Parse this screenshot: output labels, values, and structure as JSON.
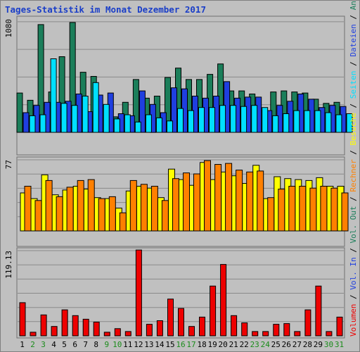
{
  "chart_data": [
    {
      "type": "bar",
      "title": "Tages-Statistik im Monat Dezember 2017",
      "categories": [
        "1",
        "2",
        "3",
        "4",
        "5",
        "6",
        "7",
        "8",
        "9",
        "10",
        "11",
        "12",
        "13",
        "14",
        "15",
        "16",
        "17",
        "18",
        "19",
        "20",
        "21",
        "22",
        "23",
        "24",
        "25",
        "26",
        "27",
        "28",
        "29",
        "30",
        "31"
      ],
      "weekend_days": [
        "2",
        "3",
        "9",
        "10",
        "16",
        "17",
        "23",
        "24",
        "30",
        "31"
      ],
      "y_max_label": "1080",
      "ylim": [
        0,
        1080
      ],
      "series": [
        {
          "name": "Anfragen",
          "color": "#1b7e5a",
          "values": [
            380,
            310,
            1040,
            390,
            730,
            1060,
            580,
            540,
            260,
            150,
            290,
            510,
            330,
            350,
            530,
            620,
            510,
            510,
            560,
            660,
            400,
            400,
            370,
            210,
            390,
            400,
            390,
            380,
            320,
            280,
            290
          ]
        },
        {
          "name": "Dateien",
          "color": "#1f3fe0",
          "values": [
            190,
            260,
            290,
            290,
            300,
            370,
            200,
            360,
            380,
            180,
            160,
            400,
            270,
            190,
            430,
            420,
            350,
            330,
            350,
            490,
            330,
            340,
            340,
            210,
            260,
            300,
            370,
            320,
            240,
            260,
            250
          ]
        },
        {
          "name": "Seiten",
          "color": "#00e0ff",
          "values": [
            160,
            170,
            710,
            280,
            260,
            350,
            480,
            270,
            130,
            170,
            100,
            170,
            140,
            110,
            230,
            210,
            240,
            240,
            260,
            260,
            250,
            260,
            240,
            160,
            180,
            210,
            210,
            210,
            190,
            170,
            180
          ]
        }
      ]
    },
    {
      "type": "bar",
      "y_max_label": "77",
      "ylim": [
        0,
        77
      ],
      "series": [
        {
          "name": "Besuche",
          "color": "#ffff00",
          "values": [
            40,
            34,
            59,
            38,
            43,
            47,
            44,
            35,
            34,
            24,
            42,
            47,
            45,
            35,
            65,
            54,
            48,
            72,
            54,
            62,
            58,
            50,
            69,
            34,
            57,
            55,
            54,
            53,
            56,
            47,
            47
          ]
        },
        {
          "name": "Rechner",
          "color": "#ff8000",
          "values": [
            47,
            32,
            53,
            36,
            46,
            53,
            54,
            34,
            36,
            19,
            53,
            49,
            47,
            32,
            55,
            61,
            60,
            74,
            70,
            71,
            64,
            62,
            63,
            35,
            44,
            47,
            47,
            45,
            47,
            45,
            40
          ]
        }
      ]
    },
    {
      "type": "bar",
      "y_max_label": "119.13",
      "ylim": [
        0,
        119.13
      ],
      "series": [
        {
          "name": "Volumen",
          "color": "#ee0000",
          "values": [
            46,
            5,
            29,
            13,
            36,
            28,
            23,
            19,
            5,
            10,
            6,
            119,
            16,
            21,
            51,
            38,
            13,
            26,
            69,
            99,
            28,
            18,
            6,
            6,
            16,
            17,
            6,
            36,
            69,
            6,
            26
          ]
        }
      ]
    }
  ],
  "legend": {
    "top_items": [
      {
        "text": "Anfragen",
        "color": "#1b7e5a"
      },
      {
        "text": "Dateien",
        "color": "#1f3fe0"
      },
      {
        "text": "Seiten",
        "color": "#00e0ff"
      },
      {
        "text": "Besuche",
        "color": "#ffff00"
      },
      {
        "text": "Rechner",
        "color": "#ff8000"
      },
      {
        "text": "Vol. Out",
        "color": "#1b7e5a"
      },
      {
        "text": "Vol. In",
        "color": "#1f3fe0"
      },
      {
        "text": "Volumen",
        "color": "#ee0000"
      }
    ],
    "separator": " / ",
    "separator_color": "#000000"
  },
  "colors": {
    "background": "#c0c0c0",
    "weekday_label": "#000000",
    "weekend_label": "#1a8c1a",
    "title": "#1a3ec8"
  }
}
